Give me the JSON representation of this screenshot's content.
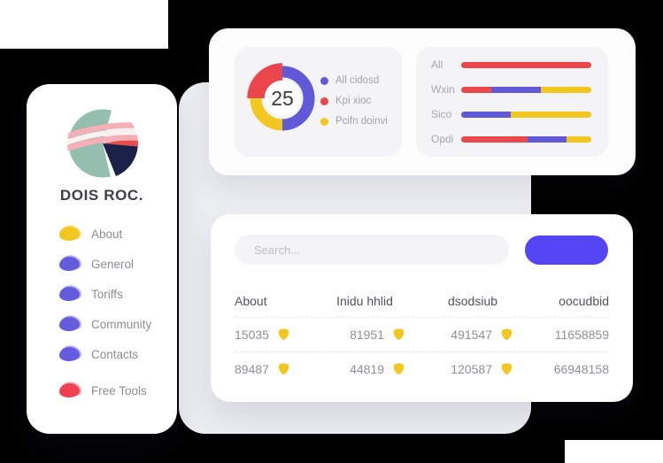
{
  "colors": {
    "accent_purple": "#615ad8",
    "button_purple": "#5546f5",
    "red": "#ea464b",
    "free_tools_red": "#ee4253",
    "yellow": "#f2c71f",
    "logo_teal": "#94bfaf",
    "logo_navy": "#1a2249",
    "logo_pink": "#f6afb6",
    "canvas_gray": "#edeef2",
    "panel_gray": "#f4f4f6"
  },
  "sidebar": {
    "brand": "DOIS ROC.",
    "menu": [
      {
        "label": "About",
        "color": "#f2c71f",
        "separated": false
      },
      {
        "label": "Generol",
        "color": "#645cdc",
        "separated": false
      },
      {
        "label": "Toriffs",
        "color": "#645cdc",
        "separated": false
      },
      {
        "label": "Community",
        "color": "#645cdc",
        "separated": false
      },
      {
        "label": "Contacts",
        "color": "#645cdc",
        "separated": false
      },
      {
        "label": "Free Tools",
        "color": "#ee4253",
        "separated": true
      }
    ]
  },
  "stats_card": {
    "donut_chart": {
      "type": "pie",
      "center_value": "25",
      "segments": [
        {
          "label": "All cidosd",
          "color": "#615ad8",
          "percent": 50,
          "emphasis": false
        },
        {
          "label": "Pcifn doinvi",
          "color": "#f2c71f",
          "percent": 25,
          "emphasis": false
        },
        {
          "label": "Kpi xioc",
          "color": "#ea464b",
          "percent": 25,
          "emphasis": true
        }
      ],
      "legend": [
        {
          "label": "All cidosd",
          "color": "#615ad8"
        },
        {
          "label": "Kpi xioc",
          "color": "#ea464b"
        },
        {
          "label": "Pcifn doinvi",
          "color": "#f2c71f"
        }
      ]
    },
    "bar_chart": {
      "type": "bar",
      "orientation": "horizontal-stacked",
      "rows": [
        {
          "label": "All",
          "segments": [
            {
              "color": "#ea464b",
              "percent": 100
            }
          ]
        },
        {
          "label": "Wxin",
          "segments": [
            {
              "color": "#ea464b",
              "percent": 23
            },
            {
              "color": "#615ad8",
              "percent": 38
            },
            {
              "color": "#f2c71f",
              "percent": 39
            }
          ]
        },
        {
          "label": "Sico",
          "segments": [
            {
              "color": "#615ad8",
              "percent": 38
            },
            {
              "color": "#f2c71f",
              "percent": 62
            }
          ]
        },
        {
          "label": "Opdi",
          "segments": [
            {
              "color": "#ea464b",
              "percent": 51
            },
            {
              "color": "#615ad8",
              "percent": 30
            },
            {
              "color": "#f2c71f",
              "percent": 19
            }
          ]
        }
      ]
    }
  },
  "table_card": {
    "search": {
      "placeholder": "Search..."
    },
    "action_button": {
      "label": ""
    },
    "columns": [
      "About",
      "Inidu hhlid",
      "dsodsiub",
      "oocudbid"
    ],
    "rows": [
      [
        {
          "value": "15035",
          "icon": "shield"
        },
        {
          "value": "81951",
          "icon": "shield"
        },
        {
          "value": "491547",
          "icon": "shield"
        },
        {
          "value": "11658859",
          "icon": null
        }
      ],
      [
        {
          "value": "89487",
          "icon": "shield"
        },
        {
          "value": "44819",
          "icon": "shield"
        },
        {
          "value": "120587",
          "icon": "shield"
        },
        {
          "value": "66948158",
          "icon": null
        }
      ]
    ],
    "row_icon_color": "#f2c71f"
  }
}
